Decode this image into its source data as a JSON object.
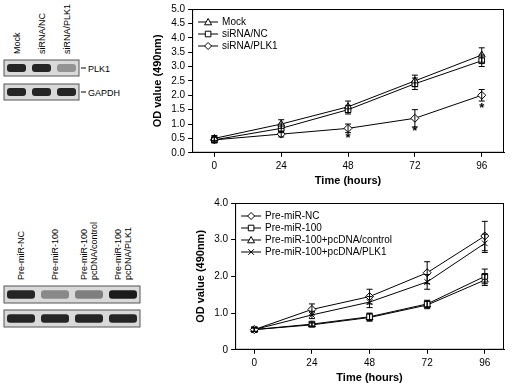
{
  "chart_data": [
    {
      "type": "line",
      "x_label": "Time (hours)",
      "y_label": "OD value (490nm)",
      "x": [
        0,
        24,
        48,
        72,
        96
      ],
      "xlim": [
        -8,
        104
      ],
      "xticks": [
        0,
        24,
        48,
        72,
        96
      ],
      "ylim": [
        0,
        5
      ],
      "yticks": [
        {
          "value": 0,
          "label": "0.0"
        },
        0.5,
        {
          "value": 1,
          "label": "1.0"
        },
        1.5,
        {
          "value": 2,
          "label": "2.0"
        },
        2.5,
        {
          "value": 3,
          "label": "3.0"
        },
        3.5,
        {
          "value": 4,
          "label": "4.0"
        },
        4.5,
        {
          "value": 5,
          "label": "5.0"
        }
      ],
      "grid": false,
      "legend": "upper left",
      "series": [
        {
          "name": "Mock",
          "color": "#000000",
          "marker": "triangle",
          "values": [
            0.5,
            1.0,
            1.6,
            2.5,
            3.4
          ],
          "errors": [
            0.1,
            0.15,
            0.2,
            0.2,
            0.25
          ]
        },
        {
          "name": "siRNA/NC",
          "color": "#000000",
          "marker": "square",
          "values": [
            0.45,
            0.85,
            1.5,
            2.4,
            3.2
          ],
          "errors": [
            0.1,
            0.15,
            0.15,
            0.2,
            0.2
          ]
        },
        {
          "name": "siRNA/PLK1",
          "color": "#000000",
          "marker": "diamond",
          "values": [
            0.45,
            0.65,
            0.85,
            1.2,
            2.0
          ],
          "errors": [
            0.1,
            0.1,
            0.15,
            0.3,
            0.2
          ]
        }
      ],
      "annotations": [
        {
          "x": 48,
          "y": 0.5,
          "text": "*"
        },
        {
          "x": 72,
          "y": 0.75,
          "text": "*"
        },
        {
          "x": 96,
          "y": 1.55,
          "text": "*"
        }
      ]
    },
    {
      "type": "line",
      "x_label": "Time (hours)",
      "y_label": "OD value (490nm)",
      "x": [
        0,
        24,
        48,
        72,
        96
      ],
      "xlim": [
        -8,
        104
      ],
      "xticks": [
        0,
        24,
        48,
        72,
        96
      ],
      "ylim": [
        0,
        4
      ],
      "yticks": [
        0,
        {
          "value": 1,
          "label": "1.0"
        },
        {
          "value": 2,
          "label": "2.0"
        },
        {
          "value": 3,
          "label": "3.0"
        },
        {
          "value": 4,
          "label": "4.0"
        }
      ],
      "grid": false,
      "legend": "upper left",
      "series": [
        {
          "name": "Pre-miR-NC",
          "color": "#000000",
          "marker": "diamond",
          "values": [
            0.55,
            1.1,
            1.45,
            2.1,
            3.1
          ],
          "errors": [
            0.05,
            0.15,
            0.2,
            0.3,
            0.4
          ]
        },
        {
          "name": "Pre-miR-100",
          "color": "#000000",
          "marker": "square",
          "values": [
            0.55,
            0.7,
            0.9,
            1.25,
            2.0
          ],
          "errors": [
            0.05,
            0.05,
            0.1,
            0.1,
            0.2
          ]
        },
        {
          "name": "Pre-miR-100+pcDNA/control",
          "color": "#000000",
          "marker": "triangle",
          "values": [
            0.55,
            0.68,
            0.88,
            1.22,
            1.9
          ],
          "errors": [
            0.05,
            0.05,
            0.1,
            0.1,
            0.15
          ]
        },
        {
          "name": "Pre-miR-100+pcDNA/PLK1",
          "color": "#000000",
          "marker": "cross",
          "values": [
            0.55,
            0.95,
            1.3,
            1.85,
            2.9
          ],
          "errors": [
            0.05,
            0.1,
            0.15,
            0.2,
            0.25
          ]
        }
      ]
    }
  ],
  "blots": [
    {
      "lanes": [
        "Mock",
        "siRNA/NC",
        "siRNA/PLK1"
      ],
      "rows": [
        {
          "label": "PLK1",
          "intensity": [
            0.9,
            0.9,
            0.35
          ]
        },
        {
          "label": "GAPDH",
          "intensity": [
            0.9,
            0.9,
            0.9
          ]
        }
      ]
    },
    {
      "lanes": [
        "Pre-miR-NC",
        "Pre-miR-100",
        "Pre-miR-100 pcDNA/control",
        "Pre-miR-100 pcDNA/PLK1"
      ],
      "rows": [
        {
          "intensity": [
            0.9,
            0.4,
            0.45,
            0.95
          ]
        },
        {
          "intensity": [
            0.9,
            0.9,
            0.9,
            0.9
          ]
        }
      ]
    }
  ]
}
